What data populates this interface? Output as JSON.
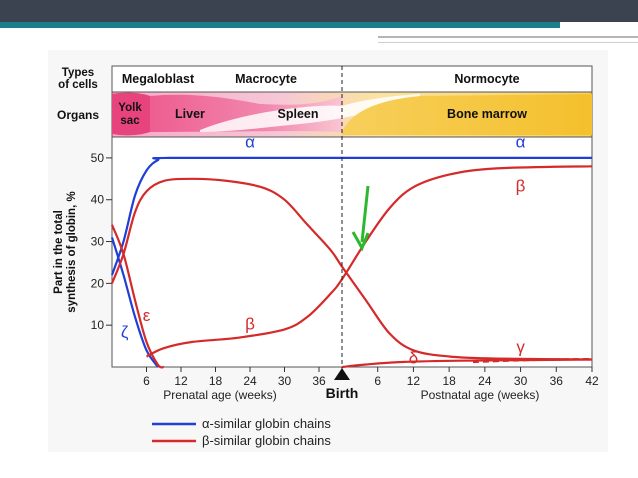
{
  "slide": {
    "colors": {
      "header_dark": "#3c4350",
      "header_teal": "#1c7d8c",
      "accent_gray": "#b5b5b5",
      "alpha_line": "#1f3fd6",
      "beta_line": "#d42a2a",
      "arrow": "#2eb82e"
    }
  },
  "chart_data": {
    "type": "line",
    "header": {
      "types_label": "Types\nof cells",
      "organs_label": "Organs",
      "cell_types": [
        "Megaloblast",
        "Macrocyte",
        "Normocyte"
      ],
      "organs": [
        "Yolk\nsac",
        "Liver",
        "Spleen",
        "Bone marrow"
      ]
    },
    "ylabel": "Part in the total synthesis of globin, %",
    "yticks": [
      "10",
      "20",
      "30",
      "40",
      "50"
    ],
    "ylim": [
      0,
      55
    ],
    "xticks_prenatal": [
      "6",
      "12",
      "18",
      "24",
      "30",
      "36"
    ],
    "xticks_postnatal": [
      "6",
      "12",
      "18",
      "24",
      "30",
      "36",
      "42"
    ],
    "xlabel_prenatal": "Prenatal age (weeks)",
    "xlabel_postnatal": "Postnatal age (weeks)",
    "birth_label": "Birth",
    "birth_marker": "birth-triangle",
    "annotation": "green-arrow pointing at the beta/gamma crossover at birth",
    "legend": [
      {
        "label": "α-similar globin chains",
        "color": "#1f3fd6"
      },
      {
        "label": "β-similar globin chains",
        "color": "#d42a2a"
      }
    ],
    "x_units": "weeks from conception (0 = conception, 40 = birth, 40 + postnatal week)",
    "series": [
      {
        "name": "α",
        "family": "alpha",
        "style": "solid",
        "points": [
          [
            0,
            22
          ],
          [
            2,
            30
          ],
          [
            4,
            41
          ],
          [
            6,
            47
          ],
          [
            8,
            49.5
          ],
          [
            10,
            50
          ],
          [
            40,
            50
          ],
          [
            82,
            50
          ]
        ]
      },
      {
        "name": "ζ",
        "family": "alpha",
        "style": "solid",
        "points": [
          [
            0,
            31
          ],
          [
            2,
            22
          ],
          [
            4,
            12
          ],
          [
            6,
            4
          ],
          [
            8,
            0
          ]
        ]
      },
      {
        "name": "ε",
        "family": "beta",
        "style": "solid",
        "points": [
          [
            0,
            34
          ],
          [
            2,
            27
          ],
          [
            4,
            16
          ],
          [
            6,
            6
          ],
          [
            8,
            0.5
          ],
          [
            9,
            0
          ]
        ]
      },
      {
        "name": "γ",
        "family": "beta",
        "style": "solid",
        "label": "γ",
        "points": [
          [
            0,
            20
          ],
          [
            2,
            27
          ],
          [
            4,
            37
          ],
          [
            6,
            42
          ],
          [
            9,
            44.5
          ],
          [
            14,
            45
          ],
          [
            20,
            44.5
          ],
          [
            26,
            43
          ],
          [
            30,
            40
          ],
          [
            34,
            34
          ],
          [
            38,
            28
          ],
          [
            40,
            24
          ],
          [
            44,
            16
          ],
          [
            48,
            8
          ],
          [
            52,
            4
          ],
          [
            58,
            2.5
          ],
          [
            66,
            2
          ],
          [
            82,
            1.8
          ]
        ]
      },
      {
        "name": "β",
        "family": "beta",
        "style": "solid",
        "points": [
          [
            6,
            2.5
          ],
          [
            9,
            4.5
          ],
          [
            14,
            6
          ],
          [
            22,
            7
          ],
          [
            30,
            9
          ],
          [
            34,
            12
          ],
          [
            38,
            17.5
          ],
          [
            40,
            21
          ],
          [
            44,
            30
          ],
          [
            48,
            38
          ],
          [
            52,
            43
          ],
          [
            58,
            46
          ],
          [
            66,
            47.5
          ],
          [
            82,
            48
          ]
        ]
      },
      {
        "name": "δ",
        "family": "beta",
        "style": "solid",
        "points": [
          [
            40,
            0
          ],
          [
            44,
            0.6
          ],
          [
            50,
            1.2
          ],
          [
            60,
            1.5
          ],
          [
            82,
            1.8
          ]
        ]
      },
      {
        "name": "δ-dashed",
        "family": "beta",
        "style": "dashed",
        "points": [
          [
            62,
            1.2
          ],
          [
            70,
            1.6
          ],
          [
            76,
            1.8
          ],
          [
            82,
            1.9
          ]
        ]
      }
    ],
    "series_labels": [
      {
        "text": "α",
        "color": "#1f3fd6",
        "at": [
          24,
          52.5
        ]
      },
      {
        "text": "α",
        "color": "#1f3fd6",
        "at": [
          70,
          52.5
        ]
      },
      {
        "text": "β",
        "color": "#d42a2a",
        "at": [
          70,
          42
        ]
      },
      {
        "text": "ε",
        "color": "#d42a2a",
        "at": [
          6,
          11
        ]
      },
      {
        "text": "ζ",
        "color": "#1f3fd6",
        "at": [
          2.2,
          7
        ]
      },
      {
        "text": "β",
        "color": "#d42a2a",
        "at": [
          24,
          9
        ]
      },
      {
        "text": "δ",
        "color": "#d42a2a",
        "at": [
          52,
          0.8
        ]
      },
      {
        "text": "γ",
        "color": "#d42a2a",
        "at": [
          70,
          3.5
        ]
      }
    ]
  }
}
